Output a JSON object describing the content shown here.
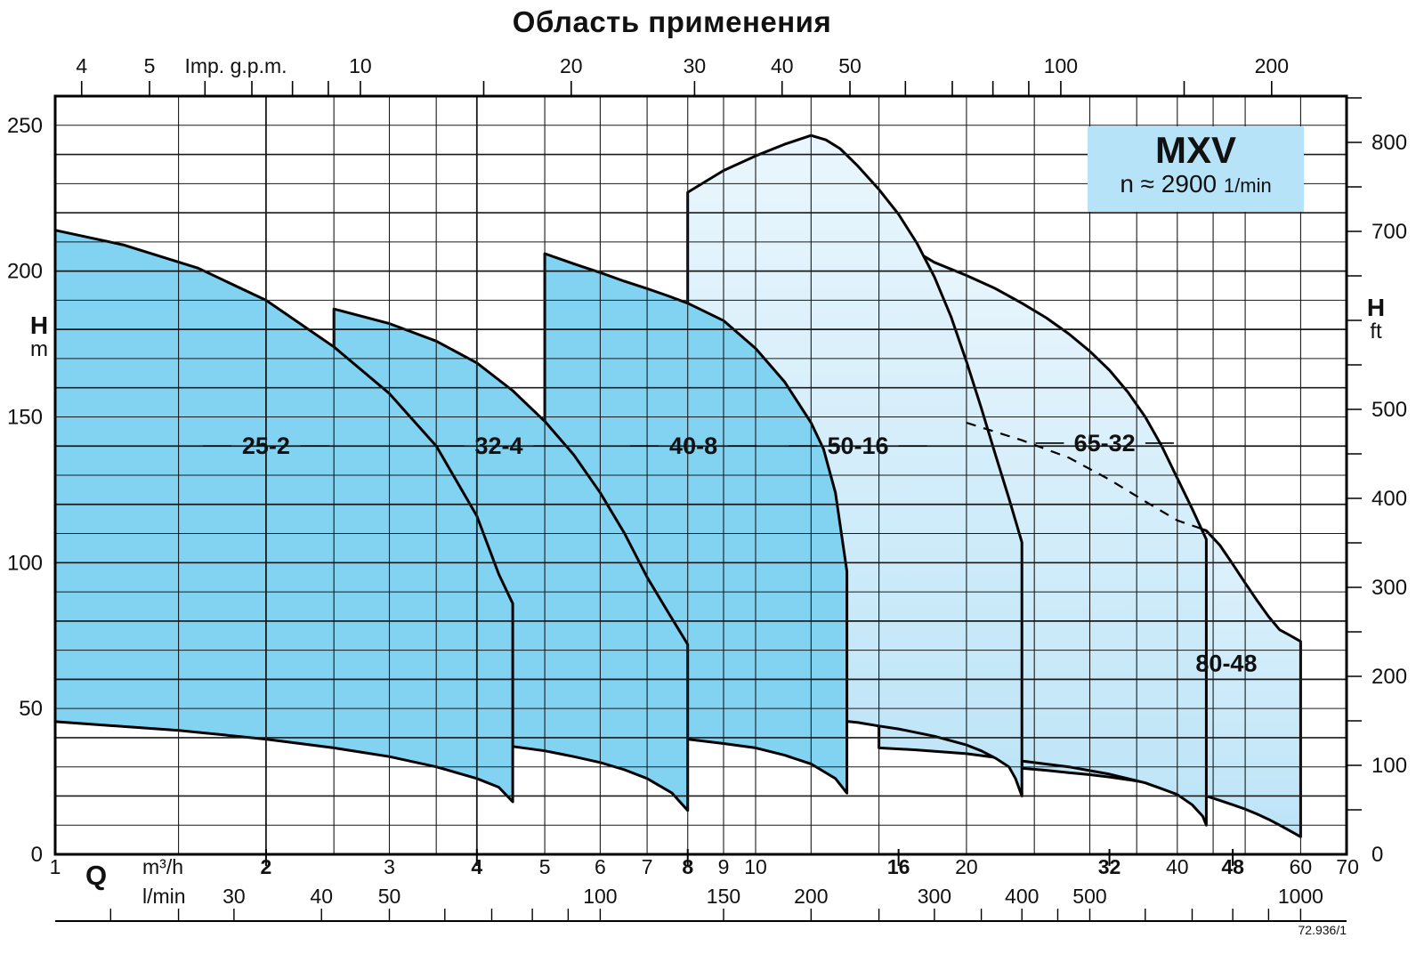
{
  "title": "Область применения",
  "badge": {
    "product": "MXV",
    "speed_prefix": "n ≈ 2900",
    "speed_unit": "1/min"
  },
  "ref_number": "72.936/1",
  "labels": {
    "q_symbol": "Q",
    "m3h_unit": "m³/h",
    "lmin_unit": "l/min",
    "head_left_symbol": "H",
    "head_left_unit": "m",
    "head_right_symbol": "H",
    "head_right_unit": "ft",
    "top_axis_unit": "Imp. g.p.m."
  },
  "colors": {
    "solid_region_fill": "#82d3f2",
    "light_region_top": "#eaf6fd",
    "light_region_bottom": "#bce4f7",
    "badge_bg": "#b7e3f8",
    "stroke": "#000000",
    "grid_major": "#1a1a1a",
    "grid_minor": "#555555"
  },
  "chart_data": {
    "type": "area",
    "title": "Область применения",
    "x_axis": {
      "label": "Q",
      "units": [
        "m³/h",
        "l/min",
        "Imp. g.p.m."
      ],
      "scale": "log",
      "range_m3h": [
        1,
        70
      ]
    },
    "y_axis": {
      "label": "H",
      "units": [
        "m",
        "ft"
      ],
      "range_m": [
        0,
        260
      ],
      "grid_step_m": 10
    },
    "legend_position": "none",
    "grid": "on",
    "left_axis_m_labels": [
      250,
      200,
      150,
      100,
      50,
      0
    ],
    "right_axis_ft": {
      "tick_min": 50,
      "tick_max": 850,
      "tick_step": 50,
      "labeled": [
        800,
        700,
        500,
        400,
        300,
        200,
        100,
        0
      ]
    },
    "top_axis_gpm": {
      "ticks": [
        4,
        5,
        6,
        7,
        8,
        9,
        10,
        15,
        20,
        30,
        40,
        50,
        60,
        70,
        80,
        90,
        100,
        150,
        200
      ],
      "labeled": [
        4,
        5,
        10,
        20,
        30,
        40,
        50,
        100,
        200
      ]
    },
    "bottom_axis_m3h": {
      "labels": [
        {
          "v": 1,
          "bold": false
        },
        {
          "v": 2,
          "bold": true
        },
        {
          "v": 3,
          "bold": false
        },
        {
          "v": 4,
          "bold": true
        },
        {
          "v": 5,
          "bold": false
        },
        {
          "v": 6,
          "bold": false
        },
        {
          "v": 7,
          "bold": false
        },
        {
          "v": 8,
          "bold": true
        },
        {
          "v": 9,
          "bold": false
        },
        {
          "v": 10,
          "bold": false
        },
        {
          "v": 16,
          "bold": true
        },
        {
          "v": 20,
          "bold": false
        },
        {
          "v": 32,
          "bold": true
        },
        {
          "v": 40,
          "bold": false
        },
        {
          "v": 48,
          "bold": true
        },
        {
          "v": 60,
          "bold": false
        },
        {
          "v": 70,
          "bold": false
        }
      ]
    },
    "lmin_axis": {
      "ticks": [
        20,
        25,
        30,
        40,
        50,
        60,
        70,
        80,
        90,
        100,
        150,
        200,
        250,
        300,
        350,
        400,
        450,
        500,
        600,
        700,
        800,
        900,
        1000
      ],
      "labeled": [
        30,
        40,
        50,
        100,
        150,
        200,
        300,
        400,
        500,
        1000
      ]
    },
    "vgrid_m3h": [
      1.5,
      2,
      2.5,
      3,
      3.5,
      4,
      5,
      6,
      7,
      8,
      9,
      10,
      12,
      15,
      20,
      25,
      30,
      35,
      40,
      45,
      50,
      60
    ],
    "vgrid_thick": [
      2,
      4
    ],
    "regions": [
      {
        "name": "80-48",
        "style": "light",
        "label": "80-48",
        "label_q": 47,
        "label_h": 65.5,
        "label_dashes": false,
        "points": [
          [
            24,
            142
          ],
          [
            26,
            139
          ],
          [
            28,
            136
          ],
          [
            30,
            132.5
          ],
          [
            32,
            128.5
          ],
          [
            34,
            125
          ],
          [
            36,
            121
          ],
          [
            38,
            117.5
          ],
          [
            40,
            114.5
          ],
          [
            42,
            112.5
          ],
          [
            44,
            111
          ],
          [
            46,
            106
          ],
          [
            48,
            99.5
          ],
          [
            50,
            93
          ],
          [
            52,
            87
          ],
          [
            54,
            81.5
          ],
          [
            56,
            77
          ],
          [
            58,
            75
          ],
          [
            60,
            73
          ],
          [
            60,
            6
          ],
          [
            58,
            8
          ],
          [
            56,
            10
          ],
          [
            54,
            12
          ],
          [
            52,
            13.8
          ],
          [
            50,
            15.5
          ],
          [
            48,
            17
          ],
          [
            46,
            18.5
          ],
          [
            44,
            20
          ],
          [
            42,
            21.3
          ],
          [
            40,
            22.6
          ],
          [
            38,
            23.7
          ],
          [
            36,
            24.7
          ],
          [
            34,
            25.6
          ],
          [
            32,
            26.5
          ],
          [
            30,
            27.3
          ],
          [
            28,
            28
          ],
          [
            26,
            28.8
          ],
          [
            24,
            29.5
          ]
        ]
      },
      {
        "name": "65-32",
        "style": "light",
        "label": "65-32",
        "label_q": 31.5,
        "label_h": 141,
        "label_dashes": true,
        "points": [
          [
            15,
            213
          ],
          [
            16,
            210
          ],
          [
            17,
            206.5
          ],
          [
            18,
            203
          ],
          [
            20,
            198.5
          ],
          [
            22,
            194
          ],
          [
            24,
            189
          ],
          [
            26,
            184
          ],
          [
            28,
            178.5
          ],
          [
            30,
            172.5
          ],
          [
            32,
            166
          ],
          [
            34,
            158.5
          ],
          [
            36,
            150
          ],
          [
            38,
            140
          ],
          [
            40,
            129
          ],
          [
            42,
            118.5
          ],
          [
            44,
            108
          ],
          [
            44,
            10
          ],
          [
            43.5,
            13
          ],
          [
            42,
            17
          ],
          [
            40,
            20.5
          ],
          [
            38,
            22.5
          ],
          [
            36,
            24.5
          ],
          [
            32,
            27.5
          ],
          [
            28,
            30
          ],
          [
            24,
            32
          ],
          [
            20,
            34.5
          ],
          [
            17,
            35.8
          ],
          [
            15,
            36.5
          ]
        ]
      },
      {
        "name": "50-16",
        "style": "light",
        "label": "50-16",
        "label_q": 14,
        "label_h": 140,
        "label_dashes": true,
        "points": [
          [
            8,
            227
          ],
          [
            9,
            234.5
          ],
          [
            10,
            239.5
          ],
          [
            11,
            243.5
          ],
          [
            12,
            246.5
          ],
          [
            12.6,
            245
          ],
          [
            13.2,
            242
          ],
          [
            14,
            236
          ],
          [
            15,
            228
          ],
          [
            16,
            219.5
          ],
          [
            17,
            209.5
          ],
          [
            18,
            198
          ],
          [
            19,
            184.5
          ],
          [
            20,
            169
          ],
          [
            21,
            153
          ],
          [
            22,
            137
          ],
          [
            23,
            122
          ],
          [
            24,
            107
          ],
          [
            24,
            20
          ],
          [
            23.5,
            26
          ],
          [
            23,
            30
          ],
          [
            22,
            33
          ],
          [
            21,
            35.5
          ],
          [
            20,
            37.5
          ],
          [
            18,
            40.5
          ],
          [
            16,
            43
          ],
          [
            15,
            44
          ],
          [
            14,
            45.2
          ],
          [
            13,
            46
          ],
          [
            12,
            46.8
          ],
          [
            10,
            48
          ],
          [
            8,
            49
          ]
        ]
      },
      {
        "name": "40-8",
        "style": "solid",
        "label": "40-8",
        "label_q": 8.15,
        "label_h": 140,
        "label_dashes": true,
        "points": [
          [
            5,
            206
          ],
          [
            5.5,
            202.5
          ],
          [
            6,
            199.5
          ],
          [
            6.5,
            196.5
          ],
          [
            7,
            194
          ],
          [
            7.5,
            191.5
          ],
          [
            8,
            189
          ],
          [
            9,
            183
          ],
          [
            10,
            173.5
          ],
          [
            11,
            162
          ],
          [
            12,
            148
          ],
          [
            12.5,
            139
          ],
          [
            13,
            124
          ],
          [
            13.5,
            97
          ],
          [
            13.5,
            21
          ],
          [
            13,
            26
          ],
          [
            12,
            31
          ],
          [
            11,
            34
          ],
          [
            10,
            36.5
          ],
          [
            9,
            38
          ],
          [
            8,
            39.5
          ],
          [
            7,
            41.5
          ],
          [
            6,
            43.5
          ],
          [
            5,
            45.5
          ]
        ]
      },
      {
        "name": "32-4",
        "style": "solid",
        "label": "32-4",
        "label_q": 4.3,
        "label_h": 140,
        "label_dashes": true,
        "points": [
          [
            2.5,
            187
          ],
          [
            3,
            182
          ],
          [
            3.5,
            176
          ],
          [
            4,
            168.5
          ],
          [
            4.5,
            159
          ],
          [
            5,
            148.5
          ],
          [
            5.5,
            137
          ],
          [
            6,
            124
          ],
          [
            6.5,
            110
          ],
          [
            7,
            95
          ],
          [
            7.5,
            83
          ],
          [
            8,
            72
          ],
          [
            8,
            15
          ],
          [
            7.6,
            21
          ],
          [
            7,
            26
          ],
          [
            6.5,
            29
          ],
          [
            6,
            31.5
          ],
          [
            5.5,
            33.5
          ],
          [
            5,
            35.5
          ],
          [
            4.5,
            37
          ],
          [
            4,
            38.5
          ],
          [
            3.5,
            40
          ],
          [
            3,
            42
          ],
          [
            2.5,
            44
          ]
        ]
      },
      {
        "name": "25-2",
        "style": "solid",
        "label": "25-2",
        "label_q": 2.0,
        "label_h": 140,
        "label_dashes": true,
        "points": [
          [
            1,
            214
          ],
          [
            1.25,
            209
          ],
          [
            1.6,
            201
          ],
          [
            2,
            190
          ],
          [
            2.5,
            174
          ],
          [
            3,
            158
          ],
          [
            3.5,
            140
          ],
          [
            4,
            116
          ],
          [
            4.3,
            96
          ],
          [
            4.5,
            86
          ],
          [
            4.5,
            18
          ],
          [
            4.3,
            23
          ],
          [
            4,
            26
          ],
          [
            3.5,
            30
          ],
          [
            3,
            33.5
          ],
          [
            2.5,
            36.5
          ],
          [
            2,
            39.5
          ],
          [
            1.5,
            42.5
          ],
          [
            1,
            45.5
          ]
        ]
      }
    ],
    "dashed_line_q_h": [
      [
        20,
        148
      ],
      [
        24,
        142
      ],
      [
        28,
        136
      ],
      [
        32,
        128.5
      ],
      [
        36,
        121
      ],
      [
        40,
        114.5
      ],
      [
        43.5,
        111.5
      ]
    ]
  }
}
